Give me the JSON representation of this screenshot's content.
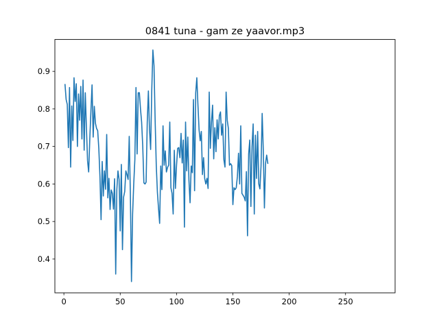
{
  "chart_data": {
    "type": "line",
    "title": "0841 tuna - gam ze yaavor.mp3",
    "xlabel": "",
    "ylabel": "",
    "xlim": [
      -8,
      294
    ],
    "ylim": [
      0.31,
      0.985
    ],
    "grid": false,
    "legend": "none",
    "line_color": "#1f77b4",
    "xticks": [
      {
        "value": 0,
        "label": "0"
      },
      {
        "value": 50,
        "label": "50"
      },
      {
        "value": 100,
        "label": "100"
      },
      {
        "value": 150,
        "label": "150"
      },
      {
        "value": 200,
        "label": "200"
      },
      {
        "value": 250,
        "label": "250"
      }
    ],
    "yticks": [
      {
        "value": 0.4,
        "label": "0.4"
      },
      {
        "value": 0.5,
        "label": "0.5"
      },
      {
        "value": 0.6,
        "label": "0.6"
      },
      {
        "value": 0.7,
        "label": "0.7"
      },
      {
        "value": 0.8,
        "label": "0.8"
      },
      {
        "value": 0.9,
        "label": "0.9"
      }
    ],
    "series": [
      {
        "name": "",
        "x_start": 1,
        "x_step": 1,
        "values": [
          0.865,
          0.825,
          0.812,
          0.697,
          0.857,
          0.645,
          0.808,
          0.716,
          0.883,
          0.82,
          0.867,
          0.7,
          0.84,
          0.77,
          0.86,
          0.72,
          0.877,
          0.69,
          0.843,
          0.75,
          0.662,
          0.632,
          0.72,
          0.795,
          0.864,
          0.725,
          0.807,
          0.762,
          0.748,
          0.742,
          0.695,
          0.62,
          0.505,
          0.66,
          0.568,
          0.635,
          0.586,
          0.732,
          0.563,
          0.615,
          0.532,
          0.584,
          0.575,
          0.533,
          0.614,
          0.36,
          0.585,
          0.635,
          0.612,
          0.475,
          0.652,
          0.425,
          0.565,
          0.58,
          0.635,
          0.625,
          0.612,
          0.727,
          0.575,
          0.34,
          0.52,
          0.6,
          0.665,
          0.857,
          0.68,
          0.843,
          0.843,
          0.8,
          0.765,
          0.7,
          0.603,
          0.6,
          0.605,
          0.765,
          0.848,
          0.745,
          0.692,
          0.85,
          0.957,
          0.915,
          0.77,
          0.65,
          0.578,
          0.535,
          0.495,
          0.648,
          0.585,
          0.755,
          0.65,
          0.688,
          0.632,
          0.644,
          0.65,
          0.765,
          0.59,
          0.575,
          0.52,
          0.69,
          0.588,
          0.65,
          0.695,
          0.697,
          0.67,
          0.735,
          0.656,
          0.717,
          0.485,
          0.765,
          0.635,
          0.725,
          0.61,
          0.55,
          0.648,
          0.63,
          0.825,
          0.582,
          0.842,
          0.883,
          0.81,
          0.744,
          0.715,
          0.74,
          0.625,
          0.67,
          0.614,
          0.6,
          0.615,
          0.588,
          0.845,
          0.695,
          0.765,
          0.81,
          0.667,
          0.75,
          0.686,
          0.771,
          0.72,
          0.782,
          0.792,
          0.73,
          0.76,
          0.665,
          0.645,
          0.845,
          0.77,
          0.748,
          0.65,
          0.654,
          0.649,
          0.545,
          0.59,
          0.585,
          0.59,
          0.62,
          0.682,
          0.6,
          0.755,
          0.575,
          0.57,
          0.565,
          0.555,
          0.633,
          0.462,
          0.68,
          0.717,
          0.54,
          0.7,
          0.76,
          0.52,
          0.73,
          0.615,
          0.74,
          0.6,
          0.587,
          0.648,
          0.788,
          0.69,
          0.536,
          0.655,
          0.677,
          0.655
        ]
      }
    ]
  }
}
